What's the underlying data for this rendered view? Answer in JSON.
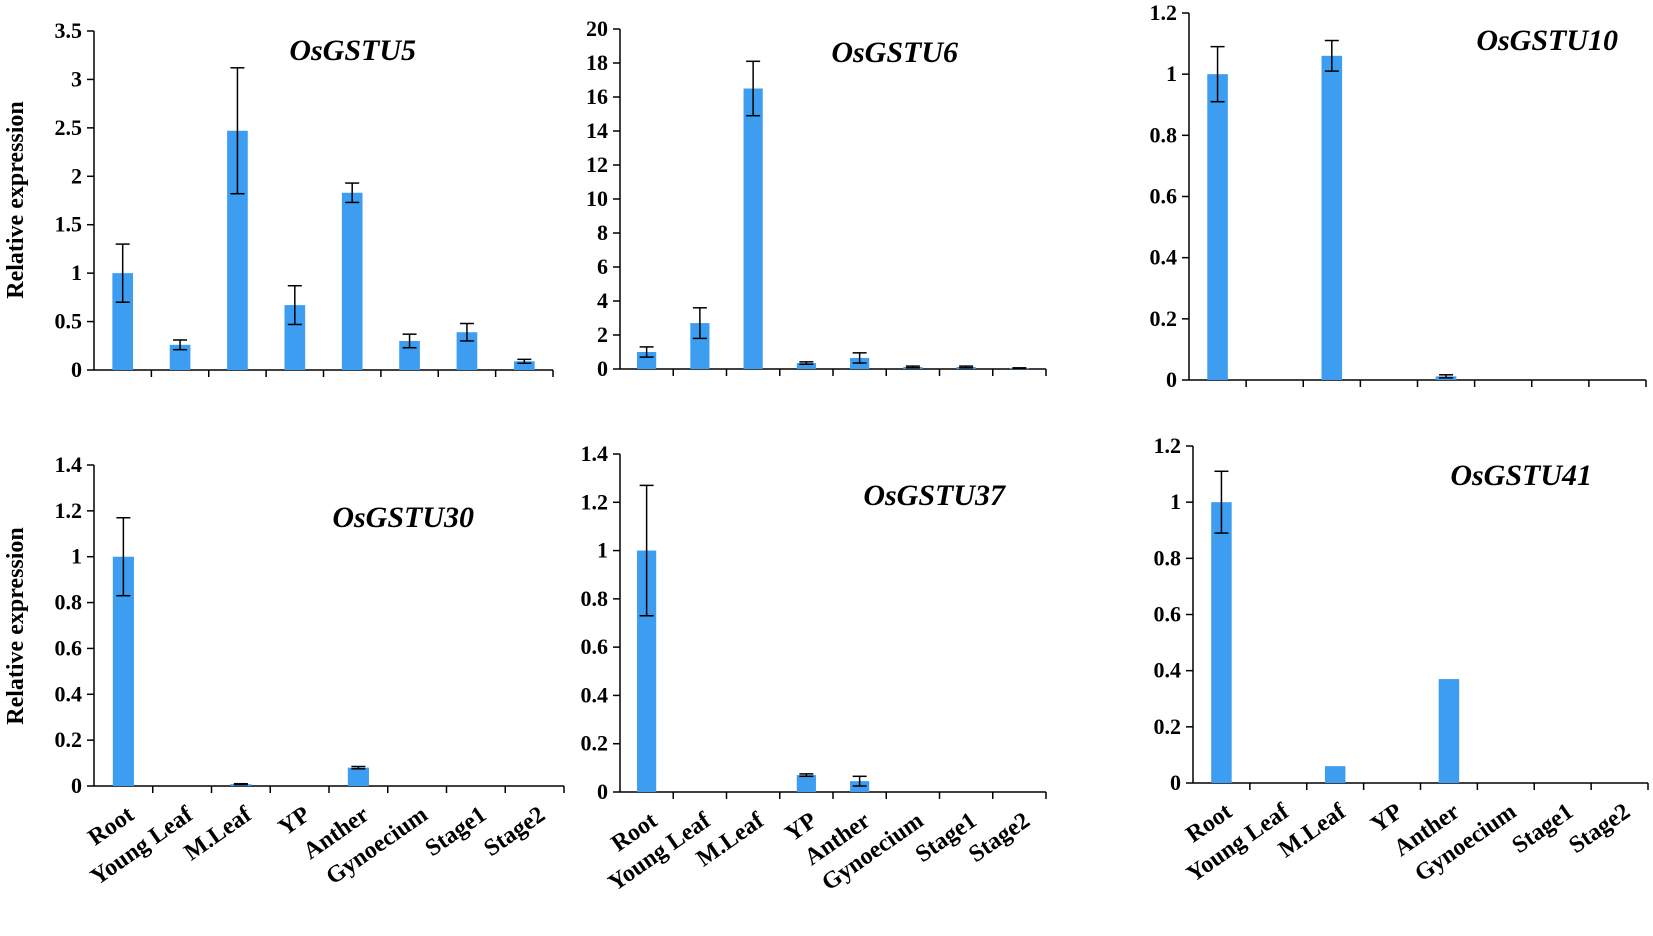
{
  "colors": {
    "bar": "#3d9df0",
    "axis": "#000000",
    "error": "#000000"
  },
  "chart_data": [
    {
      "type": "bar",
      "title": "OsGSTU5",
      "ylabel": "Relative expression",
      "xlabel": "",
      "categories": [
        "Root",
        "Young Leaf",
        "M.Leaf",
        "YP",
        "Anther",
        "Gynoecium",
        "Stage1",
        "Stage2"
      ],
      "values": [
        1.0,
        0.26,
        2.47,
        0.67,
        1.83,
        0.3,
        0.39,
        0.09
      ],
      "errors": [
        0.3,
        0.05,
        0.65,
        0.2,
        0.1,
        0.07,
        0.09,
        0.02
      ],
      "ylim": [
        0,
        3.5
      ],
      "yticks": [
        "0",
        "0.5",
        "1",
        "1.5",
        "2",
        "2.5",
        "3",
        "3.5"
      ],
      "show_category_labels": false
    },
    {
      "type": "bar",
      "title": "OsGSTU6",
      "ylabel": "",
      "xlabel": "",
      "categories": [
        "Root",
        "Young Leaf",
        "M.Leaf",
        "YP",
        "Anther",
        "Gynoecium",
        "Stage1",
        "Stage2"
      ],
      "values": [
        1.0,
        2.7,
        16.5,
        0.35,
        0.65,
        0.12,
        0.12,
        0.05
      ],
      "errors": [
        0.3,
        0.9,
        1.6,
        0.07,
        0.3,
        0.05,
        0.05,
        0.02
      ],
      "ylim": [
        0,
        20
      ],
      "yticks": [
        "0",
        "2",
        "4",
        "6",
        "8",
        "10",
        "12",
        "14",
        "16",
        "18",
        "20"
      ],
      "show_category_labels": false
    },
    {
      "type": "bar",
      "title": "OsGSTU10",
      "ylabel": "",
      "xlabel": "",
      "categories": [
        "Root",
        "Young Leaf",
        "M.Leaf",
        "YP",
        "Anther",
        "Gynoecium",
        "Stage1",
        "Stage2"
      ],
      "values": [
        1.0,
        0,
        1.06,
        0,
        0.012,
        0,
        0,
        0
      ],
      "errors": [
        0.09,
        0,
        0.05,
        0,
        0.005,
        0,
        0,
        0
      ],
      "ylim": [
        0,
        1.2
      ],
      "yticks": [
        "0",
        "0.2",
        "0.4",
        "0.6",
        "0.8",
        "1",
        "1.2"
      ],
      "show_category_labels": false
    },
    {
      "type": "bar",
      "title": "OsGSTU30",
      "ylabel": "Relative expression",
      "xlabel": "",
      "categories": [
        "Root",
        "Young Leaf",
        "M.Leaf",
        "YP",
        "Anther",
        "Gynoecium",
        "Stage1",
        "Stage2"
      ],
      "values": [
        1.0,
        0,
        0.008,
        0,
        0.08,
        0,
        0,
        0
      ],
      "errors": [
        0.17,
        0,
        0.002,
        0,
        0.005,
        0,
        0,
        0
      ],
      "ylim": [
        0,
        1.4
      ],
      "yticks": [
        "0",
        "0.2",
        "0.4",
        "0.6",
        "0.8",
        "1",
        "1.2",
        "1.4"
      ],
      "show_category_labels": true
    },
    {
      "type": "bar",
      "title": "OsGSTU37",
      "ylabel": "",
      "xlabel": "",
      "categories": [
        "Root",
        "Young Leaf",
        "M.Leaf",
        "YP",
        "Anther",
        "Gynoecium",
        "Stage1",
        "Stage2"
      ],
      "values": [
        1.0,
        0,
        0,
        0.07,
        0.045,
        0,
        0,
        0
      ],
      "errors": [
        0.27,
        0,
        0,
        0.005,
        0.02,
        0,
        0,
        0
      ],
      "ylim": [
        0,
        1.4
      ],
      "yticks": [
        "0",
        "0.2",
        "0.4",
        "0.6",
        "0.8",
        "1",
        "1.2",
        "1.4"
      ],
      "show_category_labels": true
    },
    {
      "type": "bar",
      "title": "OsGSTU41",
      "ylabel": "",
      "xlabel": "",
      "categories": [
        "Root",
        "Young Leaf",
        "M.Leaf",
        "YP",
        "Anther",
        "Gynoecium",
        "Stage1",
        "Stage2"
      ],
      "values": [
        1.0,
        0,
        0.06,
        0,
        0.37,
        0,
        0,
        0
      ],
      "errors": [
        0.11,
        0,
        0,
        0,
        0,
        0,
        0,
        0
      ],
      "ylim": [
        0,
        1.2
      ],
      "yticks": [
        "0",
        "0.2",
        "0.4",
        "0.6",
        "0.8",
        "1",
        "1.2"
      ],
      "show_category_labels": true
    }
  ]
}
